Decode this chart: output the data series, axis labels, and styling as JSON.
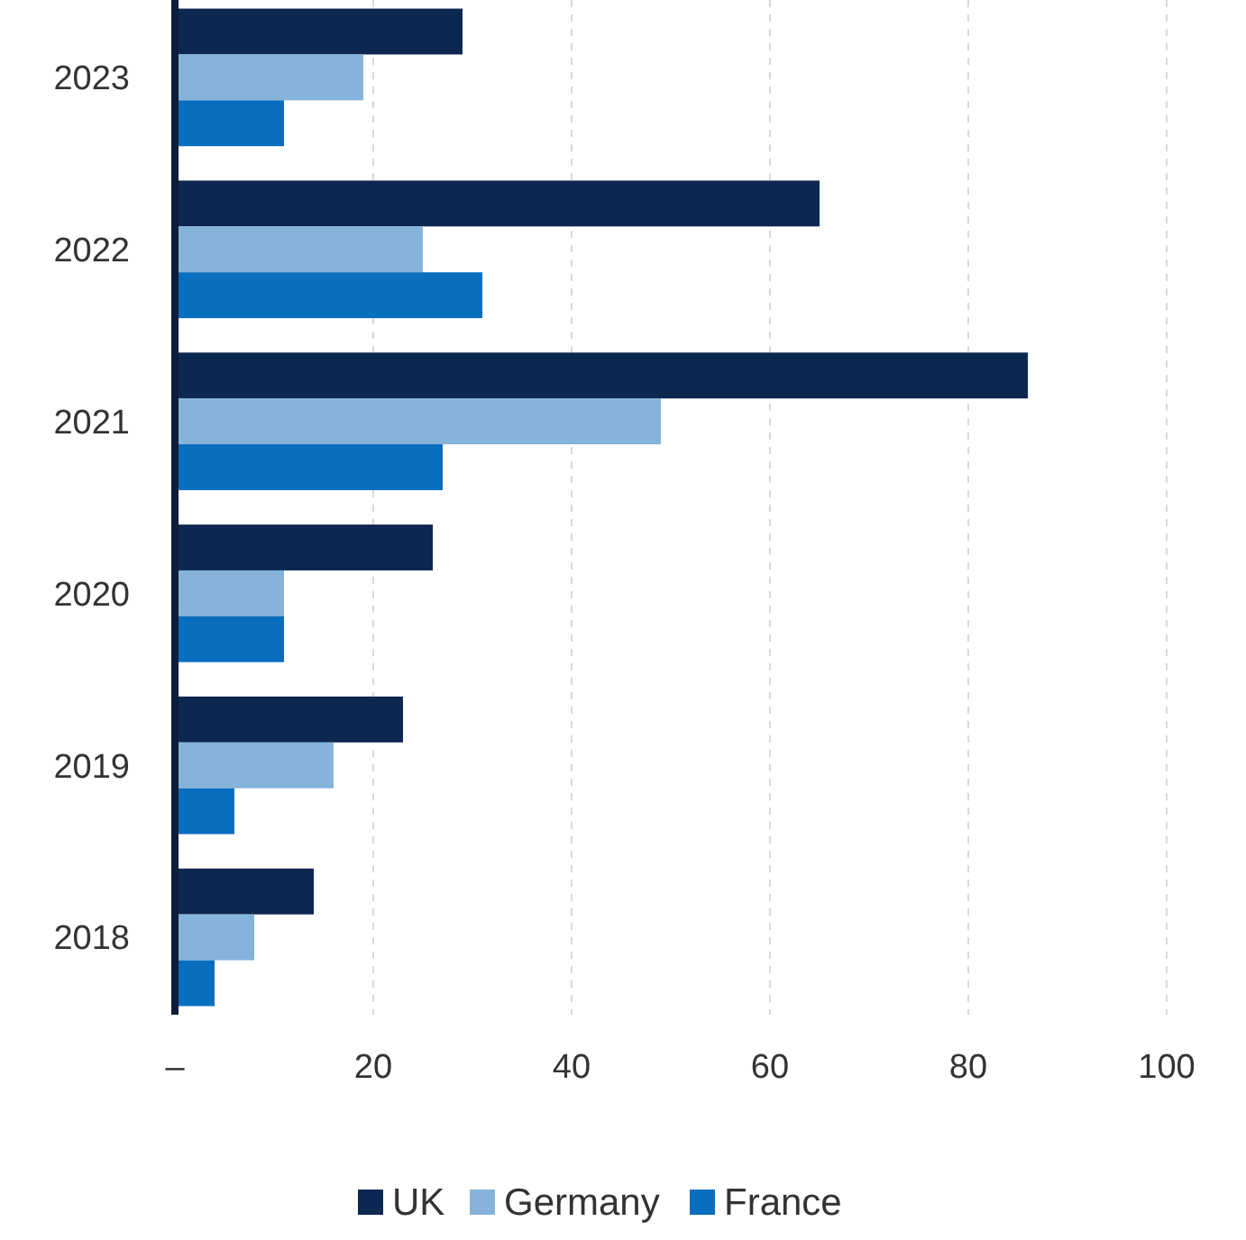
{
  "chart_data": {
    "type": "bar",
    "orientation": "horizontal",
    "categories": [
      "2023",
      "2022",
      "2021",
      "2020",
      "2019",
      "2018"
    ],
    "series": [
      {
        "name": "UK",
        "color": "#0c2851",
        "values": [
          29,
          65,
          86,
          26,
          23,
          14
        ]
      },
      {
        "name": "Germany",
        "color": "#86b3da",
        "values": [
          19,
          25,
          49,
          11,
          16,
          8
        ]
      },
      {
        "name": "France",
        "color": "#0a6ebf",
        "values": [
          11,
          31,
          27,
          11,
          6,
          4
        ]
      }
    ],
    "xlim": [
      0,
      100
    ],
    "xticks": [
      {
        "value": 0,
        "label": "–"
      },
      20,
      40,
      60,
      80,
      100
    ],
    "grid": "x",
    "legend": "bottom"
  }
}
